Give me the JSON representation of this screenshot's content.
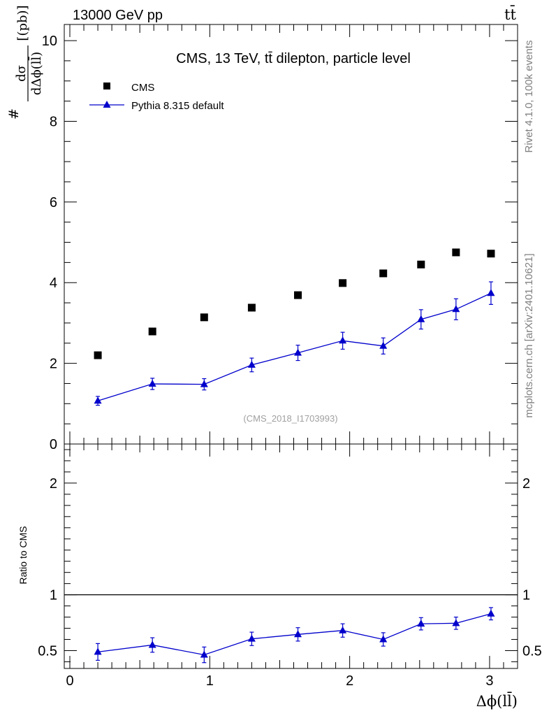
{
  "header": {
    "energy_label": "13000 GeV pp",
    "process_label": "tt̄",
    "rivet_label": "Rivet 4.1.0,  100k events",
    "site_label": "mcplots.cern.ch [arXiv:2401.10621]"
  },
  "colors": {
    "data": "#000000",
    "mc": "#0000cc",
    "ref_line": "#000000"
  },
  "chart_data": [
    {
      "type": "scatter",
      "panel": "main",
      "title": "CMS, 13 TeV, tt̄ dilepton, particle level",
      "analysis_tag": "(CMS_2018_I1703993)",
      "ylabel_parts": {
        "hash": "#",
        "num": "dσ",
        "den": "dΔϕ(ll̄)",
        "unit": "[(pb)]"
      },
      "ylim": [
        0,
        10.4
      ],
      "xlim": [
        -0.04,
        3.2
      ],
      "yticks": [
        0,
        2,
        4,
        6,
        8,
        10
      ],
      "ytick_labels": [
        "0",
        "2",
        "4",
        "6",
        "8",
        "10"
      ],
      "legend": {
        "position": "top-left",
        "entries": [
          "CMS",
          "Pythia 8.315 default"
        ]
      },
      "series": [
        {
          "name": "CMS",
          "marker": "square",
          "x": [
            0.2,
            0.59,
            0.96,
            1.3,
            1.63,
            1.95,
            2.24,
            2.51,
            2.76,
            3.01
          ],
          "y": [
            2.2,
            2.79,
            3.14,
            3.38,
            3.69,
            3.99,
            4.23,
            4.45,
            4.75,
            4.72
          ]
        },
        {
          "name": "Pythia 8.315 default",
          "marker": "triangle",
          "x": [
            0.2,
            0.59,
            0.96,
            1.3,
            1.63,
            1.95,
            2.24,
            2.51,
            2.76,
            3.01
          ],
          "y": [
            1.07,
            1.49,
            1.48,
            1.96,
            2.26,
            2.56,
            2.43,
            3.09,
            3.34,
            3.74
          ],
          "yerr": [
            0.11,
            0.14,
            0.14,
            0.17,
            0.19,
            0.21,
            0.2,
            0.24,
            0.26,
            0.28
          ]
        }
      ]
    },
    {
      "type": "scatter",
      "panel": "ratio",
      "ylabel": "Ratio to CMS",
      "xlabel": "Δϕ(ll̄)",
      "ylim": [
        0.34,
        2.35
      ],
      "xlim": [
        -0.04,
        3.2
      ],
      "xticks": [
        0,
        1,
        2,
        3
      ],
      "xtick_labels": [
        "0",
        "1",
        "2",
        "3"
      ],
      "yticks": [
        0.5,
        1,
        2
      ],
      "ytick_labels": [
        "0.5",
        "1",
        "2"
      ],
      "reference_line": 1,
      "series": [
        {
          "name": "Pythia 8.315 default",
          "marker": "triangle",
          "x": [
            0.2,
            0.59,
            0.96,
            1.3,
            1.63,
            1.95,
            2.24,
            2.51,
            2.76,
            3.01
          ],
          "y": [
            0.488,
            0.55,
            0.462,
            0.605,
            0.645,
            0.68,
            0.6,
            0.74,
            0.745,
            0.83
          ],
          "yerr": [
            0.075,
            0.065,
            0.07,
            0.06,
            0.06,
            0.06,
            0.06,
            0.055,
            0.055,
            0.055
          ]
        }
      ]
    }
  ]
}
